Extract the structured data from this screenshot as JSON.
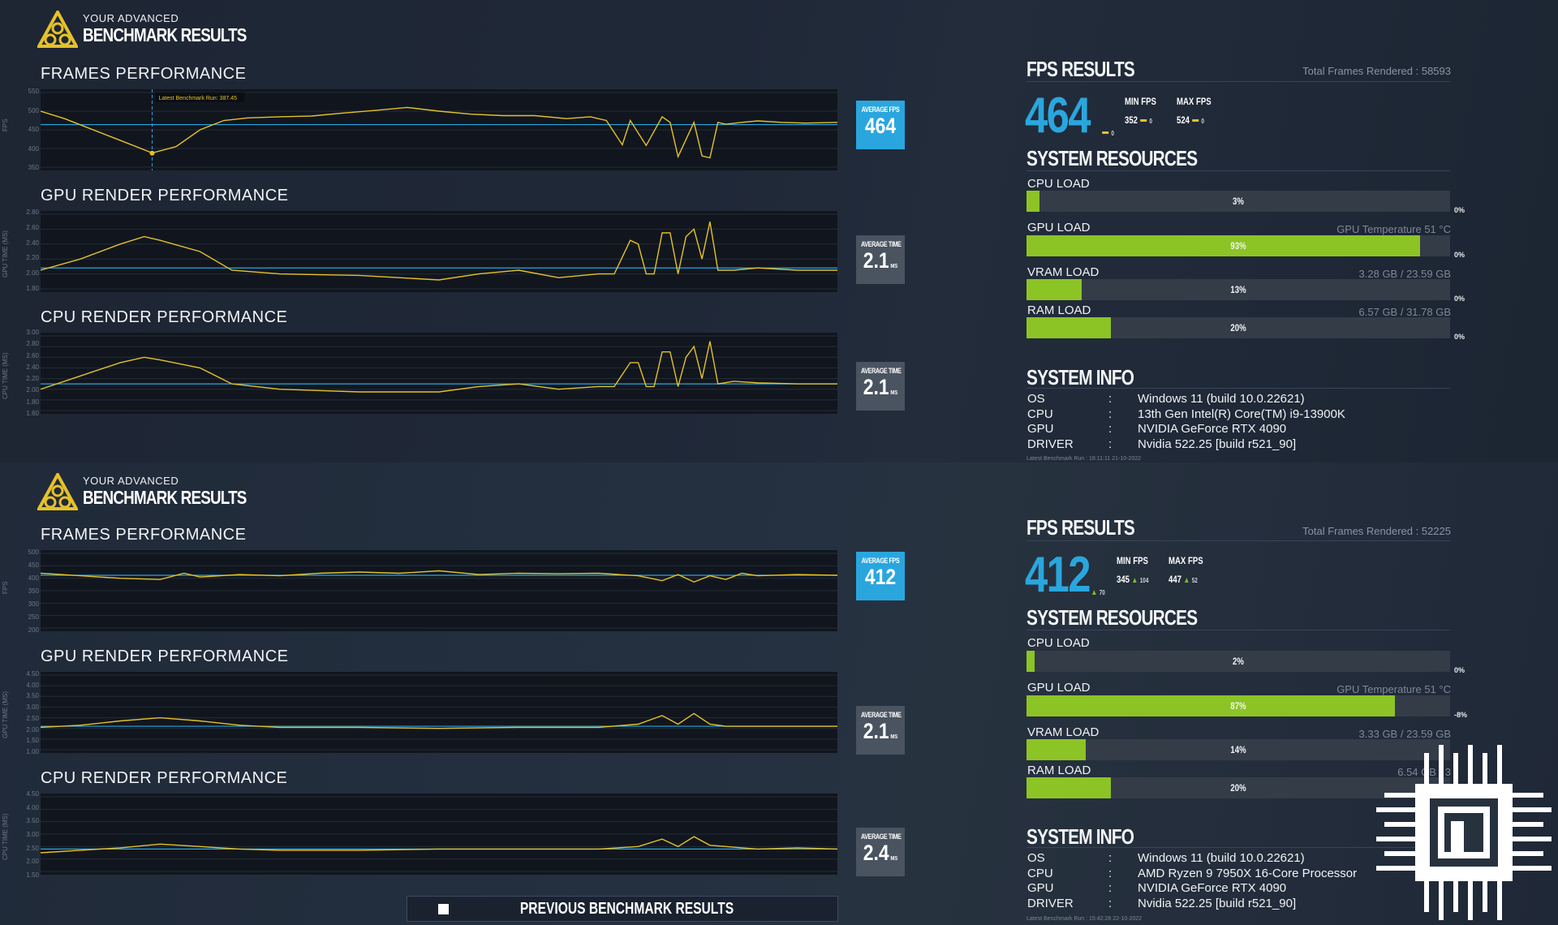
{
  "panels": [
    {
      "brand": {
        "line1": "YOUR ADVANCED",
        "line2": "BENCHMARK RESULTS"
      },
      "frames": {
        "title": "FRAMES PERFORMANCE",
        "ylabel": "FPS",
        "ticks": [
          "550",
          "500",
          "450",
          "400",
          "350"
        ],
        "tooltip": "Latest Benchmark Run: 387.45",
        "badge_label": "AVERAGE FPS",
        "badge_value": "464",
        "chart_data": {
          "type": "line",
          "ylim": [
            350,
            550
          ],
          "average": 464,
          "marker": {
            "x": 0.14,
            "y": 387.45
          },
          "x": [
            0,
            0.03,
            0.06,
            0.09,
            0.12,
            0.14,
            0.17,
            0.2,
            0.23,
            0.26,
            0.3,
            0.34,
            0.38,
            0.42,
            0.46,
            0.5,
            0.54,
            0.58,
            0.62,
            0.66,
            0.69,
            0.71,
            0.73,
            0.74,
            0.76,
            0.78,
            0.79,
            0.8,
            0.82,
            0.83,
            0.84,
            0.85,
            0.86,
            0.88,
            0.9,
            0.93,
            0.96,
            1.0
          ],
          "values": [
            500,
            480,
            455,
            430,
            405,
            388,
            405,
            450,
            475,
            482,
            485,
            487,
            495,
            502,
            510,
            500,
            492,
            488,
            488,
            480,
            485,
            475,
            410,
            475,
            408,
            485,
            470,
            378,
            470,
            380,
            375,
            470,
            465,
            470,
            474,
            470,
            468,
            470
          ]
        }
      },
      "gpu": {
        "title": "GPU RENDER PERFORMANCE",
        "ylabel": "GPU TIME (MS)",
        "ticks": [
          "2.80",
          "2.60",
          "2.40",
          "2.20",
          "2.00",
          "1.80"
        ],
        "badge_label": "AVERAGE TIME",
        "badge_value": "2.1",
        "badge_unit": "MS",
        "chart_data": {
          "type": "line",
          "ylim": [
            1.8,
            2.8
          ],
          "average": 2.08,
          "x": [
            0,
            0.05,
            0.1,
            0.13,
            0.15,
            0.2,
            0.24,
            0.3,
            0.4,
            0.5,
            0.55,
            0.6,
            0.65,
            0.7,
            0.72,
            0.74,
            0.75,
            0.76,
            0.77,
            0.78,
            0.79,
            0.8,
            0.81,
            0.82,
            0.83,
            0.84,
            0.85,
            0.87,
            0.9,
            0.95,
            1.0
          ],
          "values": [
            2.05,
            2.2,
            2.4,
            2.5,
            2.45,
            2.3,
            2.05,
            2.0,
            1.98,
            1.92,
            2.0,
            2.05,
            1.95,
            2.0,
            2.0,
            2.45,
            2.4,
            2.0,
            2.0,
            2.55,
            2.55,
            2.0,
            2.5,
            2.6,
            2.2,
            2.7,
            2.05,
            2.05,
            2.08,
            2.05,
            2.05
          ]
        }
      },
      "cpu": {
        "title": "CPU RENDER PERFORMANCE",
        "ylabel": "CPU TIME (MS)",
        "ticks": [
          "3.00",
          "2.80",
          "2.60",
          "2.40",
          "2.20",
          "2.00",
          "1.80",
          "1.60"
        ],
        "badge_label": "AVERAGE TIME",
        "badge_value": "2.1",
        "badge_unit": "MS",
        "chart_data": {
          "type": "line",
          "ylim": [
            1.6,
            3.0
          ],
          "average": 2.1,
          "x": [
            0,
            0.05,
            0.1,
            0.13,
            0.15,
            0.2,
            0.24,
            0.3,
            0.4,
            0.5,
            0.55,
            0.6,
            0.65,
            0.7,
            0.72,
            0.74,
            0.75,
            0.76,
            0.77,
            0.78,
            0.79,
            0.8,
            0.81,
            0.82,
            0.83,
            0.84,
            0.85,
            0.87,
            0.9,
            0.95,
            1.0
          ],
          "values": [
            2.0,
            2.25,
            2.5,
            2.6,
            2.55,
            2.4,
            2.1,
            2.0,
            1.95,
            1.95,
            2.05,
            2.1,
            2.0,
            2.05,
            2.05,
            2.5,
            2.5,
            2.05,
            2.05,
            2.7,
            2.7,
            2.05,
            2.6,
            2.8,
            2.2,
            2.9,
            2.1,
            2.15,
            2.12,
            2.1,
            2.1
          ]
        }
      },
      "fps": {
        "title": "FPS RESULTS",
        "total": "Total Frames Rendered : 58593",
        "value": "464",
        "delta": "0",
        "min_label": "MIN FPS",
        "min_value": "352",
        "min_delta": "0",
        "max_label": "MAX FPS",
        "max_value": "524",
        "max_delta": "0"
      },
      "resources": {
        "title": "SYSTEM RESOURCES",
        "cpu": {
          "label": "CPU LOAD",
          "pct": "3%",
          "level": 3,
          "delta": "0%"
        },
        "gpu": {
          "label": "GPU LOAD",
          "pct": "93%",
          "level": 93,
          "delta": "0%",
          "right": "GPU Temperature 51 °C"
        },
        "vram": {
          "label": "VRAM LOAD",
          "pct": "13%",
          "level": 13,
          "delta": "0%",
          "right": "3.28 GB / 23.59 GB"
        },
        "ram": {
          "label": "RAM LOAD",
          "pct": "20%",
          "level": 20,
          "delta": "0%",
          "right": "6.57 GB / 31.78 GB"
        }
      },
      "sysinfo": {
        "title": "SYSTEM INFO",
        "rows": [
          {
            "k": "OS",
            "v": "Windows 11 (build 10.0.22621)"
          },
          {
            "k": "CPU",
            "v": "13th Gen Intel(R) Core(TM) i9-13900K"
          },
          {
            "k": "GPU",
            "v": "NVIDIA GeForce RTX 4090"
          },
          {
            "k": "DRIVER",
            "v": "Nvidia 522.25 [build r521_90]"
          }
        ],
        "timestamp": "Latest Benchmark Run : 18:11:11 21-10-2022"
      }
    },
    {
      "brand": {
        "line1": "YOUR ADVANCED",
        "line2": "BENCHMARK RESULTS"
      },
      "frames": {
        "title": "FRAMES PERFORMANCE",
        "ylabel": "FPS",
        "ticks": [
          "500",
          "450",
          "400",
          "350",
          "300",
          "250",
          "200"
        ],
        "badge_label": "AVERAGE FPS",
        "badge_value": "412",
        "chart_data": {
          "type": "line",
          "ylim": [
            200,
            500
          ],
          "average": 412,
          "x": [
            0,
            0.05,
            0.1,
            0.15,
            0.18,
            0.2,
            0.25,
            0.3,
            0.35,
            0.4,
            0.45,
            0.5,
            0.55,
            0.6,
            0.65,
            0.7,
            0.75,
            0.78,
            0.8,
            0.82,
            0.84,
            0.86,
            0.88,
            0.9,
            0.95,
            1.0
          ],
          "values": [
            420,
            410,
            400,
            395,
            420,
            405,
            415,
            410,
            420,
            425,
            420,
            430,
            415,
            420,
            418,
            420,
            410,
            390,
            415,
            385,
            410,
            395,
            420,
            410,
            415,
            412
          ]
        }
      },
      "gpu": {
        "title": "GPU RENDER PERFORMANCE",
        "ylabel": "GPU TIME (MS)",
        "ticks": [
          "4.50",
          "4.00",
          "3.50",
          "3.00",
          "2.50",
          "2.00",
          "1.50",
          "1.00"
        ],
        "badge_label": "AVERAGE TIME",
        "badge_value": "2.1",
        "badge_unit": "MS",
        "chart_data": {
          "type": "line",
          "ylim": [
            1.0,
            4.5
          ],
          "average": 2.1,
          "x": [
            0,
            0.05,
            0.1,
            0.15,
            0.2,
            0.25,
            0.3,
            0.4,
            0.5,
            0.6,
            0.7,
            0.75,
            0.78,
            0.8,
            0.82,
            0.84,
            0.86,
            0.9,
            0.95,
            1.0
          ],
          "values": [
            2.05,
            2.15,
            2.35,
            2.5,
            2.35,
            2.15,
            2.05,
            2.05,
            2.0,
            2.05,
            2.05,
            2.2,
            2.6,
            2.2,
            2.7,
            2.2,
            2.1,
            2.1,
            2.1,
            2.1
          ]
        }
      },
      "cpu": {
        "title": "CPU RENDER PERFORMANCE",
        "ylabel": "CPU TIME (MS)",
        "ticks": [
          "4.50",
          "4.00",
          "3.50",
          "3.00",
          "2.50",
          "2.00",
          "1.50"
        ],
        "badge_label": "AVERAGE TIME",
        "badge_value": "2.4",
        "badge_unit": "MS",
        "chart_data": {
          "type": "line",
          "ylim": [
            1.5,
            4.5
          ],
          "average": 2.4,
          "x": [
            0,
            0.05,
            0.1,
            0.15,
            0.2,
            0.25,
            0.3,
            0.4,
            0.5,
            0.6,
            0.7,
            0.75,
            0.78,
            0.8,
            0.82,
            0.84,
            0.86,
            0.9,
            0.95,
            1.0
          ],
          "values": [
            2.25,
            2.35,
            2.45,
            2.6,
            2.5,
            2.4,
            2.35,
            2.35,
            2.4,
            2.4,
            2.4,
            2.5,
            2.8,
            2.5,
            2.9,
            2.55,
            2.5,
            2.4,
            2.45,
            2.4
          ]
        }
      },
      "fps": {
        "title": "FPS RESULTS",
        "total": "Total Frames Rendered : 52225",
        "value": "412",
        "delta": "70",
        "min_label": "MIN FPS",
        "min_value": "345",
        "min_delta": "104",
        "max_label": "MAX FPS",
        "max_value": "447",
        "max_delta": "52"
      },
      "resources": {
        "title": "SYSTEM RESOURCES",
        "cpu": {
          "label": "CPU LOAD",
          "pct": "2%",
          "level": 2,
          "delta": "0%"
        },
        "gpu": {
          "label": "GPU LOAD",
          "pct": "87%",
          "level": 87,
          "delta": "-8%",
          "right": "GPU Temperature 51 °C"
        },
        "vram": {
          "label": "VRAM LOAD",
          "pct": "14%",
          "level": 14,
          "delta": "",
          "right": "3.33 GB / 23.59 GB"
        },
        "ram": {
          "label": "RAM LOAD",
          "pct": "20%",
          "level": 20,
          "delta": "0%",
          "right": "6.54 GB / 3"
        }
      },
      "sysinfo": {
        "title": "SYSTEM INFO",
        "rows": [
          {
            "k": "OS",
            "v": "Windows 11 (build 10.0.22621)"
          },
          {
            "k": "CPU",
            "v": "AMD Ryzen 9 7950X 16-Core Processor"
          },
          {
            "k": "GPU",
            "v": "NVIDIA GeForce RTX 4090"
          },
          {
            "k": "DRIVER",
            "v": "Nvidia 522.25 [build r521_90]"
          }
        ],
        "timestamp": "Latest Benchmark Run : 15:42:28 22-10-2022"
      }
    }
  ],
  "previous_button": "PREVIOUS BENCHMARK RESULTS",
  "colors": {
    "accent": "#2aa6de",
    "line": "#e5c12a",
    "bar": "#8cc425",
    "badge_gray": "#4a5360"
  }
}
